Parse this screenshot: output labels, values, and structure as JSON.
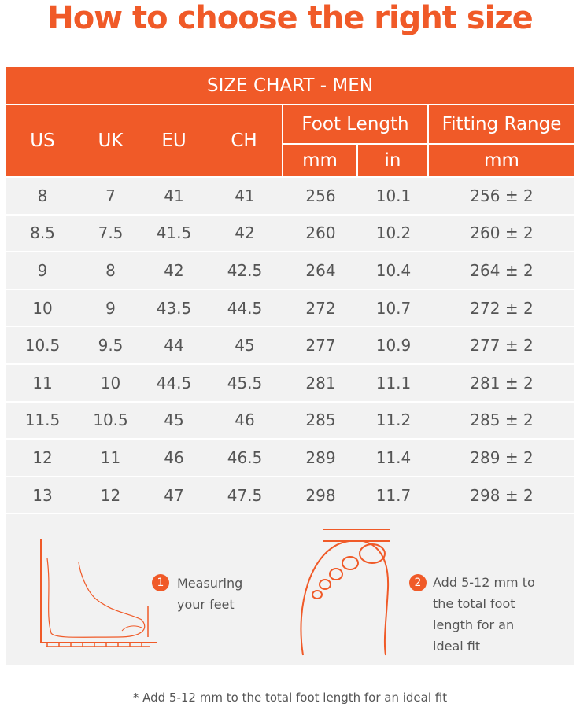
{
  "header": {
    "title": "How to choose the right size"
  },
  "table": {
    "caption": "SIZE CHART - MEN",
    "columns": [
      "US",
      "UK",
      "EU",
      "CH"
    ],
    "groups": [
      {
        "label": "Foot Length",
        "units": [
          "mm",
          "in"
        ]
      },
      {
        "label": "Fitting Range",
        "units": [
          "mm"
        ]
      }
    ],
    "rows": [
      [
        "8",
        "7",
        "41",
        "41",
        "256",
        "10.1",
        "256 ± 2"
      ],
      [
        "8.5",
        "7.5",
        "41.5",
        "42",
        "260",
        "10.2",
        "260 ± 2"
      ],
      [
        "9",
        "8",
        "42",
        "42.5",
        "264",
        "10.4",
        "264 ± 2"
      ],
      [
        "10",
        "9",
        "43.5",
        "44.5",
        "272",
        "10.7",
        "272 ± 2"
      ],
      [
        "10.5",
        "9.5",
        "44",
        "45",
        "277",
        "10.9",
        "277 ± 2"
      ],
      [
        "11",
        "10",
        "44.5",
        "45.5",
        "281",
        "11.1",
        "281 ± 2"
      ],
      [
        "11.5",
        "10.5",
        "45",
        "46",
        "285",
        "11.2",
        "285 ± 2"
      ],
      [
        "12",
        "11",
        "46",
        "46.5",
        "289",
        "11.4",
        "289 ± 2"
      ],
      [
        "13",
        "12",
        "47",
        "47.5",
        "298",
        "11.7",
        "298 ± 2"
      ]
    ]
  },
  "steps": [
    {
      "number": "1",
      "lines": [
        "Measuring",
        "your feet"
      ]
    },
    {
      "number": "2",
      "lines": [
        "Add 5-12 mm to",
        "the total foot",
        "length for an",
        "ideal fit"
      ]
    }
  ],
  "footnote": "* Add 5-12 mm to the total foot length for an ideal fit"
}
